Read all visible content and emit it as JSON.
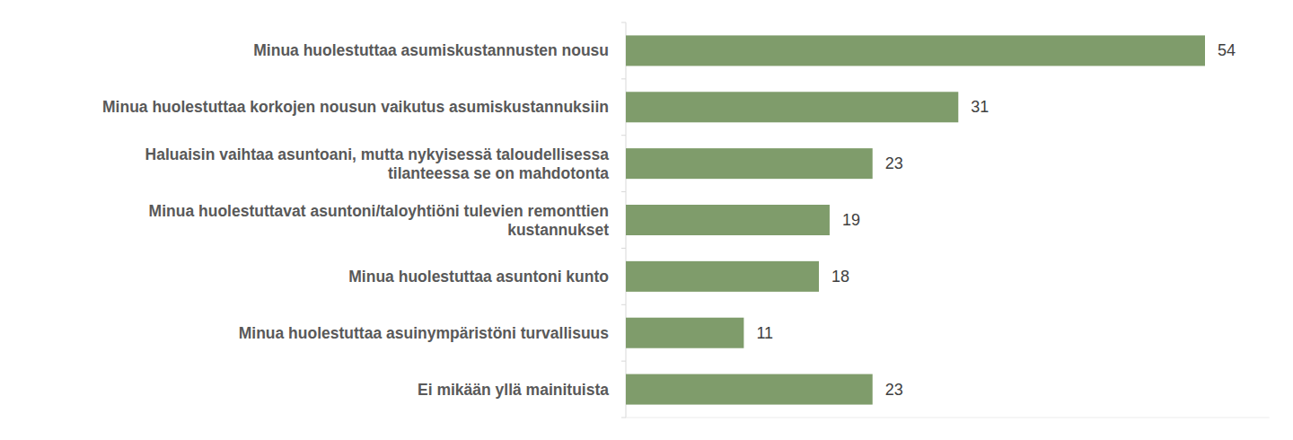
{
  "chart_data": {
    "type": "bar",
    "orientation": "horizontal",
    "categories": [
      "Minua huolestuttaa asumiskustannusten nousu",
      "Minua huolestuttaa korkojen nousun vaikutus asumiskustannuksiin",
      "Haluaisin vaihtaa asuntoani, mutta nykyisessä taloudellisessa\ntilanteessa se on mahdotonta",
      "Minua huolestuttavat asuntoni/taloyhtiöni tulevien remonttien\nkustannukset",
      "Minua huolestuttaa asuntoni kunto",
      "Minua huolestuttaa asuinympäristöni turvallisuus",
      "Ei mikään yllä mainituista"
    ],
    "values": [
      54,
      31,
      23,
      19,
      18,
      11,
      23
    ],
    "color": "#7f9c6b",
    "xlim": [
      0,
      60
    ],
    "data_labels": true,
    "tick_labels": "y",
    "grid": false
  }
}
